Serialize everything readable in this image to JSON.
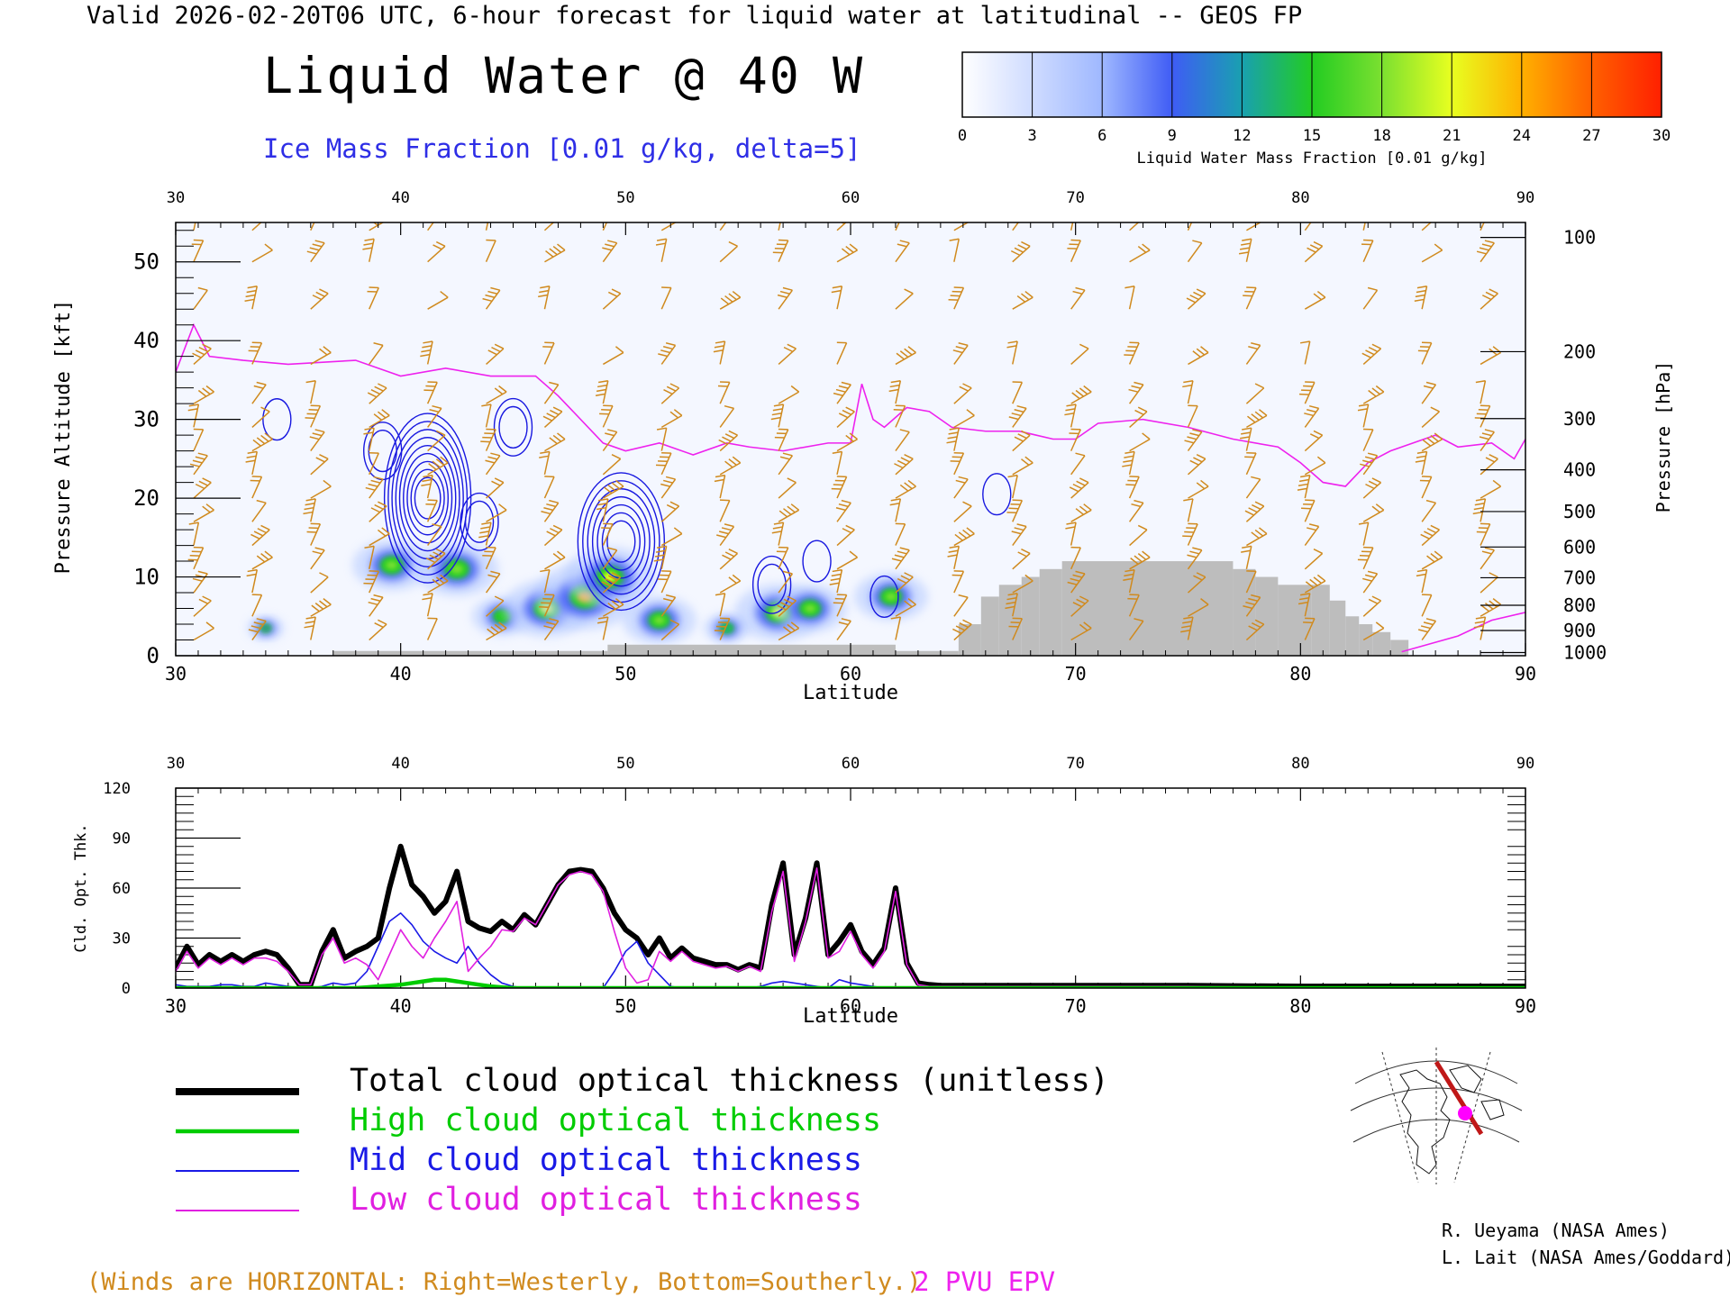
{
  "header": {
    "valid_line": "Valid 2026-02-20T06 UTC, 6-hour forecast for liquid water at latitudinal -- GEOS FP",
    "title": "Liquid Water @ 40 W",
    "subtitle": "Ice Mass Fraction [0.01 g/kg, delta=5]"
  },
  "colorbar": {
    "ticks": [
      "0",
      "3",
      "6",
      "9",
      "12",
      "15",
      "18",
      "21",
      "24",
      "27",
      "30"
    ],
    "label": "Liquid Water Mass Fraction [0.01 g/kg]",
    "colors": [
      "#ffffff",
      "#9fb8ff",
      "#3f5cf5",
      "#19a0b0",
      "#22cc22",
      "#e8ff20",
      "#ffb000",
      "#ff6000",
      "#ff2000"
    ]
  },
  "colors": {
    "wind_barb": "#d08a1e",
    "ice_contour": "#1818e0",
    "epv": "#ee22ee",
    "terrain": "#bdbdbd",
    "total": "#000000",
    "high": "#00cc00",
    "mid": "#1a1ae6",
    "low": "#e020e0"
  },
  "chart_data": [
    {
      "type": "heatmap",
      "title": "Liquid Water @ 40 W",
      "xlabel": "Latitude",
      "ylabel_left": "Pressure Altitude [kft]",
      "ylabel_right": "Pressure [hPa]",
      "xlim": [
        30,
        90
      ],
      "ylim_kft": [
        0,
        55
      ],
      "x_ticks": [
        "30",
        "40",
        "50",
        "60",
        "70",
        "80",
        "90"
      ],
      "y_ticks_left": [
        "0",
        "10",
        "20",
        "30",
        "40",
        "50"
      ],
      "pressure_levels": [
        {
          "label": "100",
          "kft": 53.1
        },
        {
          "label": "200",
          "kft": 38.6
        },
        {
          "label": "300",
          "kft": 30.1
        },
        {
          "label": "400",
          "kft": 23.6
        },
        {
          "label": "500",
          "kft": 18.3
        },
        {
          "label": "600",
          "kft": 13.8
        },
        {
          "label": "700",
          "kft": 9.9
        },
        {
          "label": "800",
          "kft": 6.4
        },
        {
          "label": "900",
          "kft": 3.2
        },
        {
          "label": "1000",
          "kft": 0.4
        }
      ],
      "liquid_water_blobs": [
        {
          "lat": 39.6,
          "kft": 11.5,
          "max": 17
        },
        {
          "lat": 42.5,
          "kft": 11,
          "max": 18
        },
        {
          "lat": 44.5,
          "kft": 5,
          "max": 13
        },
        {
          "lat": 46.5,
          "kft": 6,
          "max": 19
        },
        {
          "lat": 48.2,
          "kft": 7.5,
          "max": 22
        },
        {
          "lat": 49.3,
          "kft": 10,
          "max": 20
        },
        {
          "lat": 51.5,
          "kft": 4.5,
          "max": 16
        },
        {
          "lat": 56.8,
          "kft": 5.5,
          "max": 19
        },
        {
          "lat": 58.2,
          "kft": 6,
          "max": 16
        },
        {
          "lat": 61.8,
          "kft": 7.5,
          "max": 16
        },
        {
          "lat": 34,
          "kft": 3.5,
          "max": 8
        },
        {
          "lat": 54.5,
          "kft": 3.5,
          "max": 10
        }
      ],
      "ice_contour_centers": [
        {
          "lat": 41.2,
          "kft": 20,
          "max": 45
        },
        {
          "lat": 49.8,
          "kft": 14.5,
          "max": 35
        },
        {
          "lat": 39.2,
          "kft": 26,
          "max": 10
        },
        {
          "lat": 45,
          "kft": 29,
          "max": 10
        },
        {
          "lat": 34.5,
          "kft": 30,
          "max": 5
        },
        {
          "lat": 43.5,
          "kft": 17,
          "max": 10
        },
        {
          "lat": 58.5,
          "kft": 12,
          "max": 5
        },
        {
          "lat": 56.5,
          "kft": 9,
          "max": 10
        },
        {
          "lat": 61.5,
          "kft": 7.5,
          "max": 5
        },
        {
          "lat": 66.5,
          "kft": 20.5,
          "max": 5
        }
      ],
      "epv_2pvu_kft": {
        "lat": [
          30,
          30.8,
          31.5,
          33,
          35,
          38,
          40,
          42,
          44,
          46,
          47,
          49,
          50,
          51.5,
          53,
          54.5,
          55.5,
          57,
          59,
          60,
          60.5,
          61,
          61.5,
          62.5,
          63.5,
          64.5,
          66,
          67.5,
          69,
          70,
          71,
          73,
          75,
          77,
          79,
          80,
          81,
          82,
          83,
          84,
          86,
          87,
          88.5,
          89.5,
          90
        ],
        "kft": [
          36,
          42,
          38,
          37.5,
          37,
          37.5,
          35.5,
          36.5,
          35.5,
          35.5,
          33,
          27,
          26,
          27,
          25.5,
          27,
          26.5,
          26,
          27,
          27,
          34.5,
          30,
          29,
          31.5,
          31,
          29,
          28.5,
          28.5,
          27.5,
          27.5,
          29.5,
          30,
          29,
          27.5,
          26.5,
          24.5,
          22,
          21.5,
          24.5,
          26,
          28,
          26.5,
          27,
          25,
          27.5
        ]
      },
      "terrain_kft": {
        "lat": [
          37,
          49,
          49.2,
          62,
          64.8,
          65.8,
          66.6,
          67.6,
          68.4,
          69.4,
          77,
          78,
          79,
          80.5,
          81.3,
          82,
          82.6,
          83.2,
          84
        ],
        "kft": [
          0.6,
          0.6,
          1.4,
          0.6,
          4,
          7.5,
          9,
          10,
          11,
          12,
          11,
          10,
          9,
          9,
          7,
          5,
          4,
          3,
          2
        ]
      },
      "wind_barb_lats": [
        30.8,
        33.4,
        36,
        38.6,
        41.2,
        43.8,
        46.4,
        49,
        51.6,
        54.2,
        56.8,
        59.4,
        62,
        64.6,
        67.2,
        69.8,
        72.4,
        75,
        77.6,
        80.2,
        82.8,
        85.4,
        88
      ],
      "wind_barb_kft": [
        2,
        5,
        8,
        11,
        14,
        17,
        20,
        23,
        26,
        29,
        32,
        37,
        44,
        50,
        54
      ]
    },
    {
      "type": "line",
      "xlabel": "Latitude",
      "ylabel": "Cld. Opt. Thk.",
      "xlim": [
        30,
        90
      ],
      "ylim": [
        0,
        120
      ],
      "x_ticks": [
        "30",
        "40",
        "50",
        "60",
        "70",
        "80",
        "90"
      ],
      "y_ticks": [
        "0",
        "30",
        "60",
        "90",
        "120"
      ],
      "x": [
        30,
        30.5,
        31,
        31.5,
        32,
        32.5,
        33,
        33.5,
        34,
        34.5,
        35,
        35.5,
        36,
        36.5,
        37,
        37.5,
        38,
        38.5,
        39,
        39.5,
        40,
        40.5,
        41,
        41.5,
        42,
        42.5,
        43,
        43.5,
        44,
        44.5,
        45,
        45.5,
        46,
        46.5,
        47,
        47.5,
        48,
        48.5,
        49,
        49.5,
        50,
        50.5,
        51,
        51.5,
        52,
        52.5,
        53,
        53.5,
        54,
        54.5,
        55,
        55.5,
        56,
        56.5,
        57,
        57.5,
        58,
        58.5,
        59,
        59.5,
        60,
        60.5,
        61,
        61.5,
        62,
        62.5,
        63,
        63.5,
        64,
        65,
        70,
        75,
        80,
        85,
        90
      ],
      "series": [
        {
          "name": "Total cloud optical thickness (unitless)",
          "values": [
            12,
            25,
            14,
            20,
            16,
            20,
            16,
            20,
            22,
            20,
            12,
            2,
            2,
            22,
            35,
            18,
            22,
            25,
            30,
            60,
            85,
            62,
            55,
            45,
            52,
            70,
            40,
            36,
            34,
            40,
            35,
            44,
            38,
            50,
            62,
            70,
            71,
            70,
            60,
            45,
            35,
            30,
            20,
            30,
            18,
            24,
            18,
            16,
            14,
            14,
            11,
            14,
            12,
            50,
            75,
            20,
            42,
            75,
            20,
            28,
            38,
            22,
            14,
            24,
            60,
            15,
            3,
            2,
            1.5,
            1.5,
            1.5,
            1.5,
            1,
            1,
            1
          ]
        },
        {
          "name": "High cloud optical thickness",
          "values": [
            0,
            0,
            0,
            0,
            0,
            0,
            0,
            0,
            0,
            0,
            0,
            0,
            0,
            0,
            0,
            0,
            0,
            0.5,
            1,
            1.5,
            2,
            3,
            4,
            5,
            5,
            4,
            3,
            2,
            1,
            0.5,
            0,
            0,
            0,
            0,
            0,
            0,
            0,
            0,
            0,
            0,
            0,
            0,
            0,
            0,
            0,
            0,
            0,
            0,
            0,
            0,
            0,
            0,
            0,
            0,
            0,
            0,
            0,
            0,
            0,
            0,
            0,
            0,
            0,
            0,
            0,
            0,
            0,
            0,
            0,
            0,
            0,
            0,
            0,
            0,
            0
          ]
        },
        {
          "name": "Mid cloud optical thickness",
          "values": [
            2,
            1,
            1,
            1,
            2,
            2,
            1,
            1,
            3,
            2,
            1,
            0,
            0,
            1,
            3,
            2,
            3,
            10,
            25,
            40,
            45,
            38,
            28,
            22,
            18,
            15,
            25,
            15,
            8,
            3,
            1,
            0,
            0,
            0,
            0,
            0,
            0,
            0,
            0,
            10,
            22,
            28,
            15,
            8,
            1,
            0,
            0,
            0,
            0,
            0,
            0,
            0,
            1,
            3,
            4,
            3,
            2,
            1,
            0,
            5,
            3,
            2,
            1,
            0,
            0,
            0,
            0,
            0,
            0,
            0,
            0,
            0,
            0,
            0,
            0
          ]
        },
        {
          "name": "Low cloud optical thickness",
          "values": [
            10,
            22,
            12,
            18,
            14,
            18,
            14,
            18,
            18,
            16,
            10,
            2,
            2,
            20,
            30,
            15,
            18,
            14,
            5,
            20,
            35,
            25,
            18,
            30,
            40,
            52,
            10,
            18,
            25,
            35,
            34,
            42,
            38,
            50,
            62,
            68,
            70,
            68,
            58,
            34,
            12,
            3,
            5,
            22,
            16,
            22,
            16,
            14,
            12,
            13,
            10,
            13,
            10,
            46,
            70,
            16,
            40,
            72,
            18,
            22,
            34,
            20,
            12,
            22,
            58,
            14,
            2,
            1,
            1,
            1,
            1,
            1,
            0.5,
            0.5,
            0.5
          ]
        }
      ]
    }
  ],
  "legend": {
    "total": "Total cloud optical thickness (unitless)",
    "high": "High cloud optical thickness",
    "mid": "Mid cloud optical thickness",
    "low": "Low cloud optical thickness"
  },
  "footer": {
    "winds_note": "(Winds are HORIZONTAL: Right=Westerly, Bottom=Southerly.)",
    "epv_note": "2 PVU EPV",
    "credit1": "R. Ueyama (NASA Ames)",
    "credit2": "L. Lait (NASA Ames/Goddard)"
  }
}
